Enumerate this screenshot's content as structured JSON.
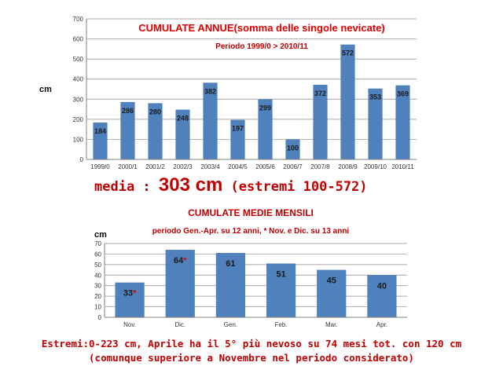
{
  "chart_data": [
    {
      "type": "bar",
      "title": "CUMULATE ANNUE(somma delle singole nevicate)",
      "subtitle": "Periodo 1999/0 > 2010/11",
      "ylabel": "cm",
      "ylim": [
        0,
        700
      ],
      "yticks": [
        0,
        100,
        200,
        300,
        400,
        500,
        600,
        700
      ],
      "categories": [
        "1999/0",
        "2000/1",
        "2001/2",
        "2002/3",
        "2003/4",
        "2004/5",
        "2005/6",
        "2006/7",
        "2007/8",
        "2008/9",
        "2009/10",
        "2010/11"
      ],
      "values": [
        184,
        286,
        280,
        248,
        382,
        197,
        299,
        100,
        372,
        572,
        353,
        369
      ],
      "grid": true,
      "bar_color": "#4f81bd"
    },
    {
      "type": "bar",
      "title": "CUMULATE MEDIE MENSILI",
      "subtitle": "periodo Gen.-Apr. su 12 anni, * Nov. e Dic. su 13 anni",
      "ylabel": "cm",
      "ylim": [
        0,
        70
      ],
      "yticks": [
        0,
        10,
        20,
        30,
        40,
        50,
        60,
        70
      ],
      "categories": [
        "Nov.",
        "Dic.",
        "Gen.",
        "Feb.",
        "Mar.",
        "Apr."
      ],
      "values": [
        33,
        64,
        61,
        51,
        45,
        40
      ],
      "starred": [
        true,
        true,
        false,
        false,
        false,
        false
      ],
      "grid": true,
      "bar_color": "#4f81bd"
    }
  ],
  "media": {
    "prefix": "media : ",
    "value": "303 cm",
    "suffix": " (estremi 100-572)"
  },
  "footer": {
    "line1": "Estremi:0-223 cm, Aprile ha il 5° più nevoso su 74 mesi tot. con 120 cm",
    "line2": "(comunque superiore a Novembre nel periodo considerato)"
  }
}
